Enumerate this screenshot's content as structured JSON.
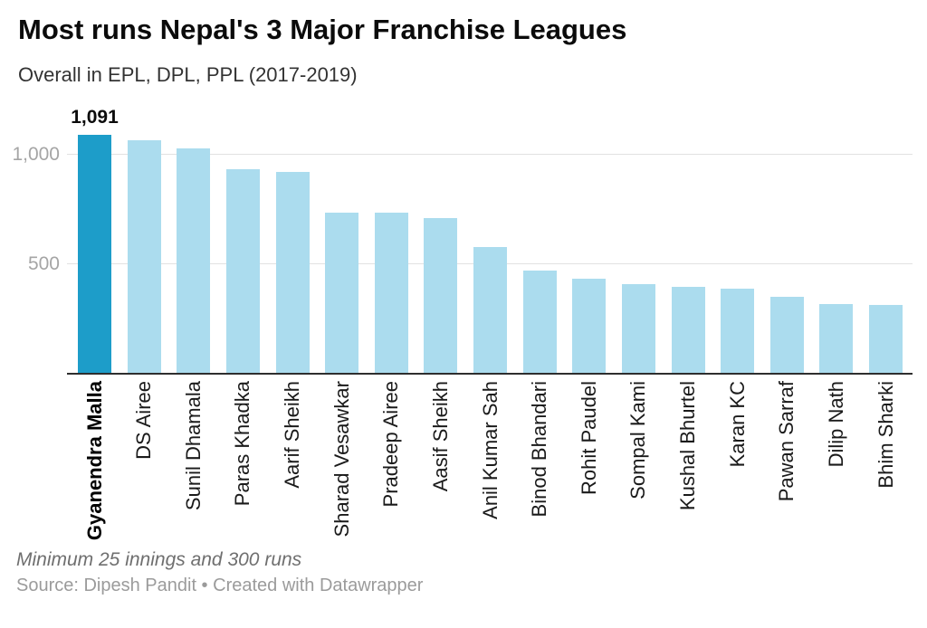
{
  "chart_data": {
    "type": "bar",
    "title": "Most runs Nepal's 3 Major Franchise Leagues",
    "subtitle": "Overall in EPL, DPL, PPL (2017-2019)",
    "footnote": "Minimum 25 innings and 300 runs",
    "source_line": "Source: Dipesh Pandit • Created with Datawrapper",
    "categories": [
      "Gyanendra Malla",
      "DS Airee",
      "Sunil Dhamala",
      "Paras Khadka",
      "Aarif Sheikh",
      "Sharad Vesawkar",
      "Pradeep Airee",
      "Aasif Sheikh",
      "Anil Kumar Sah",
      "Binod Bhandari",
      "Rohit Paudel",
      "Sompal Kami",
      "Kushal Bhurtel",
      "Karan KC",
      "Pawan Sarraf",
      "Dilip Nath",
      "Bhim Sharki"
    ],
    "values": [
      1091,
      1065,
      1030,
      935,
      920,
      735,
      735,
      712,
      577,
      470,
      433,
      411,
      398,
      390,
      350,
      317,
      313
    ],
    "highlight_index": 0,
    "value_labels": {
      "0": "1,091"
    },
    "colors": {
      "bar": "#abdcee",
      "highlight": "#1d9dc9",
      "gridline": "#e2e2e2",
      "axis": "#2e2e2e"
    },
    "xlabel": "",
    "ylabel": "",
    "yaxis": {
      "ticks": [
        500,
        1000
      ],
      "tick_labels": [
        "500",
        "1,000"
      ],
      "range": [
        0,
        1240
      ],
      "grid": true
    },
    "legend": null
  }
}
